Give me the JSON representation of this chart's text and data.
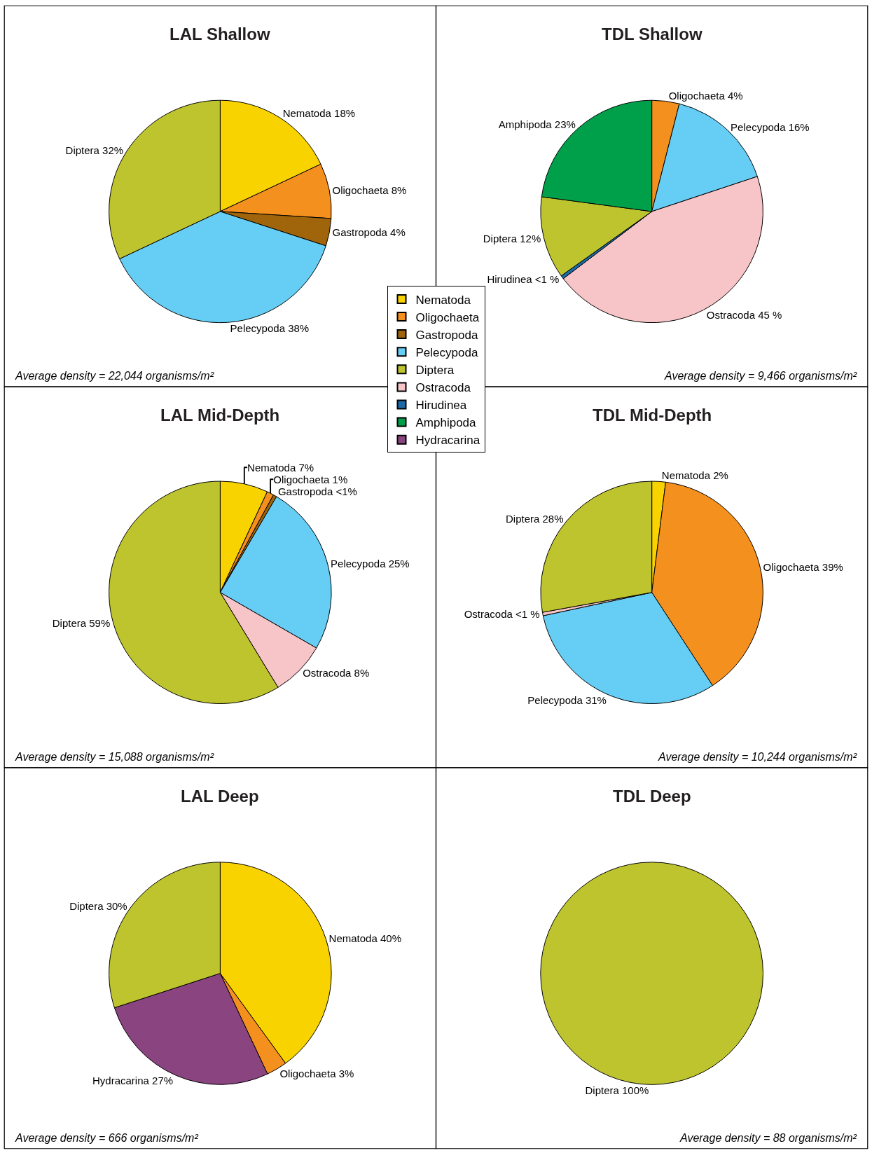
{
  "chart_data": [
    {
      "type": "pie",
      "title": "LAL Shallow",
      "categories": [
        "Nematoda",
        "Oligochaeta",
        "Gastropoda",
        "Pelecypoda",
        "Diptera"
      ],
      "values": [
        18,
        8,
        4,
        38,
        32
      ],
      "value_labels": [
        "18%",
        "8%",
        "4%",
        "38%",
        "32%"
      ],
      "colors": [
        "#f9d300",
        "#f4901e",
        "#a0650a",
        "#66cdf4",
        "#bec42e"
      ],
      "annotations": [
        "Average density = 22,044 organisms/m²"
      ],
      "legend": "right"
    },
    {
      "type": "pie",
      "title": "TDL Shallow",
      "categories": [
        "Oligochaeta",
        "Pelecypoda",
        "Ostracoda",
        "Hirudinea",
        "Diptera",
        "Amphipoda"
      ],
      "values": [
        4,
        16,
        45,
        0.5,
        12,
        23
      ],
      "value_labels": [
        "4%",
        "16%",
        "45 %",
        "<1 %",
        "12%",
        "23%"
      ],
      "colors": [
        "#f4901e",
        "#66cdf4",
        "#f7c4c8",
        "#1b6aa8",
        "#bec42e",
        "#00a04b"
      ],
      "annotations": [
        "Average density = 9,466 organisms/m²"
      ],
      "legend": "left"
    },
    {
      "type": "pie",
      "title": "LAL Mid-Depth",
      "categories": [
        "Nematoda",
        "Oligochaeta",
        "Gastropoda",
        "Pelecypoda",
        "Ostracoda",
        "Diptera"
      ],
      "values": [
        7,
        1,
        0.5,
        25,
        8,
        59
      ],
      "value_labels": [
        "7%",
        "1%",
        "<1%",
        "25%",
        "8%",
        "59%"
      ],
      "colors": [
        "#f9d300",
        "#f4901e",
        "#a0650a",
        "#66cdf4",
        "#f7c4c8",
        "#bec42e"
      ],
      "annotations": [
        "Average density = 15,088 organisms/m²"
      ]
    },
    {
      "type": "pie",
      "title": "TDL Mid-Depth",
      "categories": [
        "Nematoda",
        "Oligochaeta",
        "Pelecypoda",
        "Ostracoda",
        "Diptera"
      ],
      "values": [
        2,
        39,
        31,
        0.5,
        28
      ],
      "value_labels": [
        "2%",
        "39%",
        "31%",
        "<1 %",
        "28%"
      ],
      "colors": [
        "#f9d300",
        "#f4901e",
        "#66cdf4",
        "#f7c4c8",
        "#bec42e"
      ],
      "annotations": [
        "Average density = 10,244 organisms/m²"
      ]
    },
    {
      "type": "pie",
      "title": "LAL Deep",
      "categories": [
        "Nematoda",
        "Oligochaeta",
        "Hydracarina",
        "Diptera"
      ],
      "values": [
        40,
        3,
        27,
        30
      ],
      "value_labels": [
        "40%",
        "3%",
        "27%",
        "30%"
      ],
      "colors": [
        "#f9d300",
        "#f4901e",
        "#8a4480",
        "#bec42e"
      ],
      "annotations": [
        "Average density = 666 organisms/m²"
      ]
    },
    {
      "type": "pie",
      "title": "TDL Deep",
      "categories": [
        "Diptera"
      ],
      "values": [
        100
      ],
      "value_labels": [
        "100%"
      ],
      "colors": [
        "#bec42e"
      ],
      "annotations": [
        "Average density = 88 organisms/m²"
      ]
    }
  ]
}
